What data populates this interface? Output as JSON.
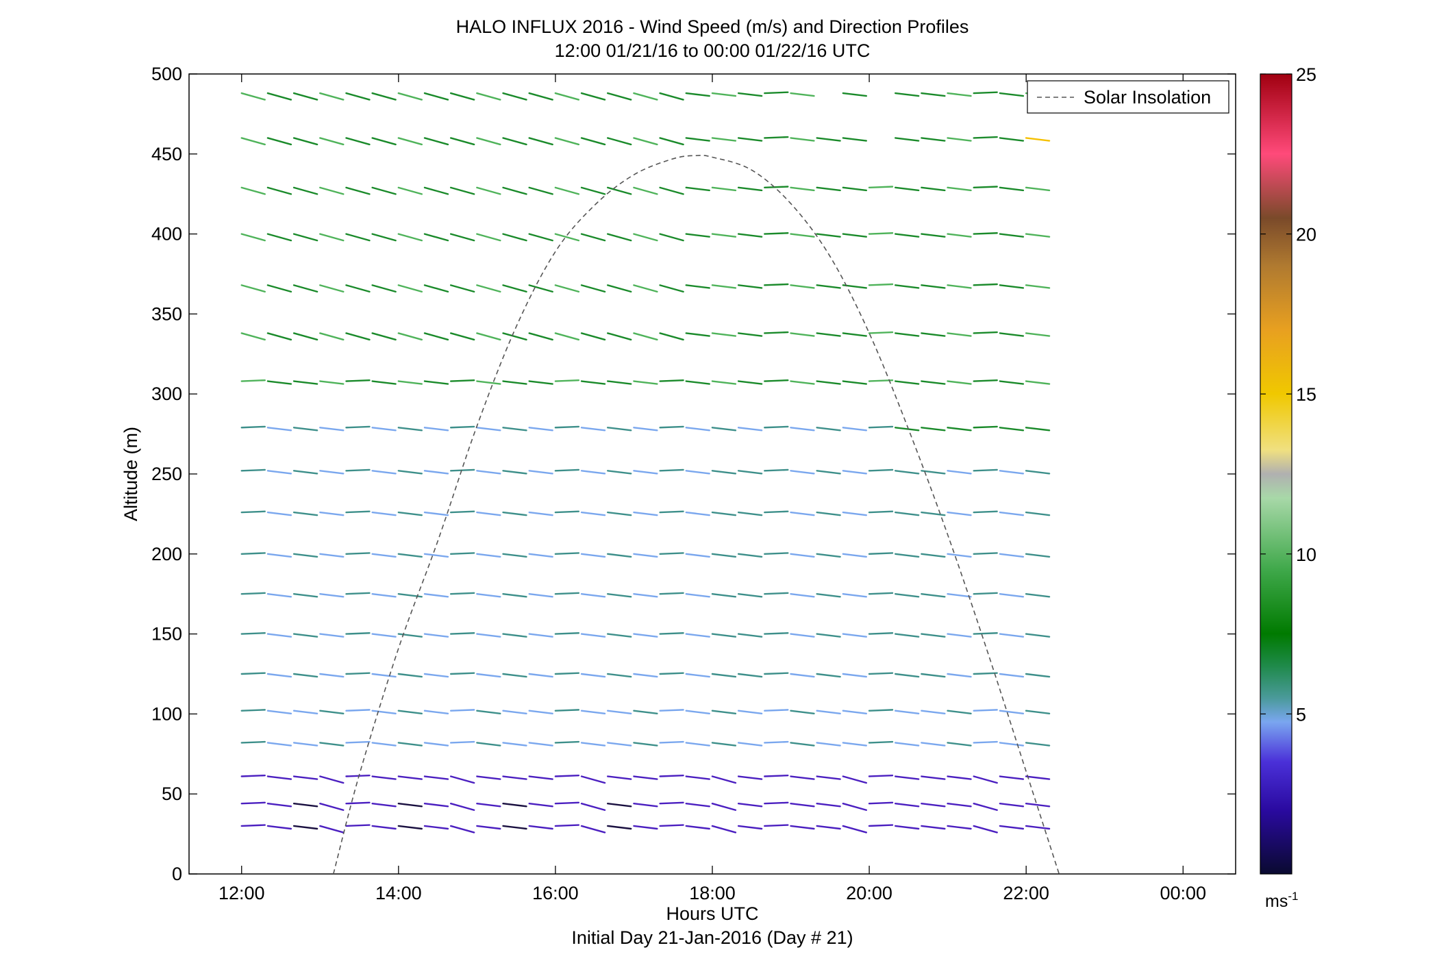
{
  "chart_data": {
    "type": "scatter",
    "title": "HALO INFLUX 2016 - Wind Speed (m/s) and Direction Profiles",
    "subtitle": "12:00 01/21/16 to 00:00 01/22/16  UTC",
    "xlabel": "Hours UTC",
    "xlabel2": "Initial Day 21-Jan-2016 (Day # 21)",
    "ylabel": "Altitude (m)",
    "xlim": [
      11.33,
      24.67
    ],
    "ylim": [
      0,
      500
    ],
    "x_ticks": [
      12,
      14,
      16,
      18,
      20,
      22,
      24
    ],
    "x_tick_labels": [
      "12:00",
      "14:00",
      "16:00",
      "18:00",
      "20:00",
      "22:00",
      "00:00"
    ],
    "y_ticks": [
      0,
      50,
      100,
      150,
      200,
      250,
      300,
      350,
      400,
      450,
      500
    ],
    "y_tick_labels": [
      "0",
      "50",
      "100",
      "150",
      "200",
      "250",
      "300",
      "350",
      "400",
      "450",
      "500"
    ],
    "legend": {
      "position": "top-right",
      "entries": [
        "Solar Insolation"
      ]
    },
    "colorbar": {
      "min": 0,
      "max": 25,
      "ticks": [
        5,
        10,
        15,
        20,
        25
      ],
      "tick_labels": [
        "5",
        "10",
        "15",
        "20",
        "25"
      ],
      "unit_label": "ms",
      "unit_exponent": "-1"
    },
    "solar_insolation": {
      "style": "dashed",
      "color": "#555555",
      "x": [
        13.17,
        13.5,
        14.0,
        14.5,
        15.0,
        15.5,
        16.0,
        16.5,
        17.0,
        17.5,
        17.8,
        18.0,
        18.5,
        19.0,
        19.5,
        20.0,
        20.5,
        21.0,
        21.5,
        22.0,
        22.42
      ],
      "y": [
        0,
        62,
        141,
        208,
        280,
        342,
        389,
        418,
        437,
        447,
        449,
        448,
        440,
        419,
        386,
        338,
        278,
        212,
        140,
        64,
        0
      ]
    },
    "wind_profile": {
      "altitudes": [
        30,
        44,
        61,
        82,
        102,
        125,
        150,
        175,
        200,
        226,
        252,
        279,
        308,
        338,
        368,
        400,
        429,
        460,
        488
      ],
      "time_start": 12.0,
      "time_step": 0.3333,
      "time_count": 31
    },
    "colors": {
      "green": "#1a8a2a",
      "light_green": "#4fb35a",
      "teal": "#3d8f8a",
      "light_blue": "#7aa7ee",
      "purple": "#4b1fc0",
      "dark": "#1a1040",
      "yellow": "#f5c000"
    }
  }
}
